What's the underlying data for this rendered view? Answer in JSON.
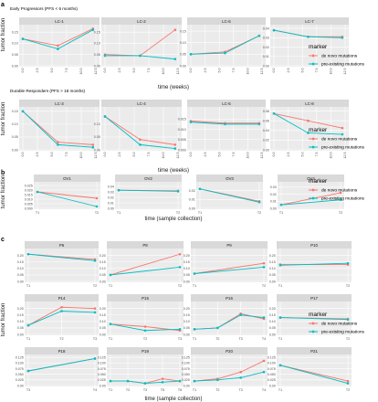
{
  "labels": {
    "a": "a",
    "b": "b",
    "c": "c"
  },
  "colors": {
    "de_novo": "#F8766D",
    "pre_existing": "#00BFC4",
    "panel_bg": "#EBEBEB",
    "strip_bg": "#D9D9D9",
    "grid": "#FFFFFF"
  },
  "legend": {
    "title": "marker",
    "items": [
      "de novo mutations",
      "pre-existing mutations"
    ]
  },
  "chart_data": [
    {
      "id": "early",
      "type": "line",
      "title": "Early Progressors (PFS < 6 months)",
      "xlabel": "time (weeks)",
      "ylabel": "tumor fraction",
      "x_ticks": [
        "0.0",
        "2.5",
        "5.0",
        "7.5",
        "10.0",
        "12.5"
      ],
      "panels": [
        {
          "name": "LC-1",
          "ylim": [
            0,
            0.175
          ],
          "y_ticks": [
            "0.00",
            "0.05",
            "0.10",
            "0.15"
          ],
          "series": [
            {
              "name": "de novo mutations",
              "x": [
                0,
                6,
                12
              ],
              "y": [
                0.12,
                0.09,
                0.165
              ]
            },
            {
              "name": "pre-existing mutations",
              "x": [
                0,
                6,
                12
              ],
              "y": [
                0.12,
                0.075,
                0.16
              ]
            }
          ]
        },
        {
          "name": "LC-2",
          "ylim": [
            0,
            0.175
          ],
          "y_ticks": [
            "0.00",
            "0.05",
            "0.10",
            "0.15"
          ],
          "series": [
            {
              "name": "de novo mutations",
              "x": [
                0,
                6,
                12
              ],
              "y": [
                0.05,
                0.045,
                0.16
              ]
            },
            {
              "name": "pre-existing mutations",
              "x": [
                0,
                6,
                12
              ],
              "y": [
                0.045,
                0.045,
                0.03
              ]
            }
          ]
        },
        {
          "name": "LC-6",
          "ylim": [
            0,
            0.17
          ],
          "y_ticks": [
            "0.00",
            "0.05",
            "0.10",
            "0.15"
          ],
          "series": [
            {
              "name": "de novo mutations",
              "x": [
                0,
                6,
                12
              ],
              "y": [
                0.05,
                0.06,
                0.13
              ]
            },
            {
              "name": "pre-existing mutations",
              "x": [
                0,
                6,
                12
              ],
              "y": [
                0.05,
                0.055,
                0.13
              ]
            }
          ]
        },
        {
          "name": "LC-7",
          "ylim": [
            0,
            0.042
          ],
          "y_ticks": [
            "0.00",
            "0.01",
            "0.02",
            "0.03",
            "0.04"
          ],
          "series": [
            {
              "name": "de novo mutations",
              "x": [
                0,
                6,
                12
              ],
              "y": [
                0.038,
                0.031,
                0.031
              ]
            },
            {
              "name": "pre-existing mutations",
              "x": [
                0,
                6,
                12
              ],
              "y": [
                0.038,
                0.031,
                0.03
              ]
            }
          ]
        }
      ]
    },
    {
      "id": "durable",
      "type": "line",
      "title": "Durable Responders (PFS > 18 months)",
      "xlabel": "time (weeks)",
      "ylabel": "tumor fraction",
      "x_ticks": [
        "0.0",
        "2.5",
        "5.0",
        "7.5",
        "10.0",
        "12.5"
      ],
      "panels": [
        {
          "name": "LC-3",
          "ylim": [
            0,
            0.16
          ],
          "y_ticks": [
            "0.00",
            "0.05",
            "0.10",
            "0.15"
          ],
          "series": [
            {
              "name": "de novo mutations",
              "x": [
                0,
                6,
                12
              ],
              "y": [
                0.15,
                0.03,
                0.02
              ]
            },
            {
              "name": "pre-existing mutations",
              "x": [
                0,
                6,
                12
              ],
              "y": [
                0.15,
                0.02,
                0.01
              ]
            }
          ]
        },
        {
          "name": "LC-4",
          "ylim": [
            0,
            0.16
          ],
          "y_ticks": [
            "0.00",
            "0.05",
            "0.10"
          ],
          "series": [
            {
              "name": "de novo mutations",
              "x": [
                0,
                6,
                12
              ],
              "y": [
                0.13,
                0.04,
                0.02
              ]
            },
            {
              "name": "pre-existing mutations",
              "x": [
                0,
                6,
                12
              ],
              "y": [
                0.13,
                0.02,
                0.005
              ]
            }
          ]
        },
        {
          "name": "LC-5",
          "ylim": [
            0,
            0.02
          ],
          "y_ticks": [
            "0.000",
            "0.005",
            "0.010",
            "0.015"
          ],
          "series": [
            {
              "name": "de novo mutations",
              "x": [
                0,
                6,
                12
              ],
              "y": [
                0.014,
                0.013,
                0.013
              ]
            },
            {
              "name": "pre-existing mutations",
              "x": [
                0,
                6,
                12
              ],
              "y": [
                0.0135,
                0.0125,
                0.0125
              ]
            }
          ]
        },
        {
          "name": "LC-8",
          "ylim": [
            0,
            0.085
          ],
          "y_ticks": [
            "0.00",
            "0.02",
            "0.04",
            "0.06",
            "0.08"
          ],
          "series": [
            {
              "name": "de novo mutations",
              "x": [
                0,
                6,
                12
              ],
              "y": [
                0.075,
                0.06,
                0.045
              ]
            },
            {
              "name": "pre-existing mutations",
              "x": [
                0,
                6,
                12
              ],
              "y": [
                0.075,
                0.035,
                0.032
              ]
            }
          ]
        }
      ]
    },
    {
      "id": "ovarian",
      "type": "line",
      "xlabel": "time (sample collection)",
      "ylabel": "tumor fraction",
      "panels": [
        {
          "name": "OV1",
          "ylim": [
            0,
            0.027
          ],
          "x_ticks": [
            "T1",
            "T2"
          ],
          "y_ticks": [
            "0.000",
            "0.005",
            "0.010",
            "0.015",
            "0.020",
            "0.025"
          ],
          "series": [
            {
              "name": "de novo mutations",
              "x": [
                0,
                1
              ],
              "y": [
                0.018,
                0.011
              ]
            },
            {
              "name": "pre-existing mutations",
              "x": [
                0,
                1
              ],
              "y": [
                0.018,
                0.002
              ]
            }
          ]
        },
        {
          "name": "OV2",
          "ylim": [
            0,
            0.045
          ],
          "x_ticks": [
            "T1",
            "T2"
          ],
          "y_ticks": [
            "0.00",
            "0.01",
            "0.02",
            "0.03",
            "0.04"
          ],
          "series": [
            {
              "name": "de novo mutations",
              "x": [
                0,
                1
              ],
              "y": [
                0.033,
                0.032
              ]
            },
            {
              "name": "pre-existing mutations",
              "x": [
                0,
                1
              ],
              "y": [
                0.033,
                0.031
              ]
            }
          ]
        },
        {
          "name": "OV3",
          "ylim": [
            0,
            0.028
          ],
          "x_ticks": [
            "T1",
            "T2"
          ],
          "y_ticks": [
            "0.00",
            "0.01",
            "0.02"
          ],
          "series": [
            {
              "name": "de novo mutations",
              "x": [
                0,
                1
              ],
              "y": [
                0.022,
                0.008
              ]
            },
            {
              "name": "pre-existing mutations",
              "x": [
                0,
                1
              ],
              "y": [
                0.022,
                0.007
              ]
            }
          ]
        },
        {
          "name": "OV4",
          "ylim": [
            0,
            0.035
          ],
          "x_ticks": [
            "T1",
            "T2"
          ],
          "y_ticks": [
            "0.00",
            "0.01",
            "0.02",
            "0.03"
          ],
          "series": [
            {
              "name": "de novo mutations",
              "x": [
                0,
                1
              ],
              "y": [
                0.005,
                0.022
              ]
            },
            {
              "name": "pre-existing mutations",
              "x": [
                0,
                1
              ],
              "y": [
                0.005,
                0.012
              ]
            }
          ]
        }
      ]
    },
    {
      "id": "pancreatic",
      "type": "line",
      "xlabel": "time (sample collection)",
      "ylabel": "tumor fraction",
      "ylim": [
        0,
        0.24
      ],
      "y_ticks": [
        "0.00",
        "0.05",
        "0.10",
        "0.15",
        "0.20"
      ],
      "panels": [
        {
          "name": "P6",
          "x_ticks": [
            "T1",
            "T2"
          ],
          "series": [
            {
              "name": "de novo mutations",
              "x": [
                0,
                1
              ],
              "y": [
                0.21,
                0.17
              ]
            },
            {
              "name": "pre-existing mutations",
              "x": [
                0,
                1
              ],
              "y": [
                0.21,
                0.16
              ]
            }
          ]
        },
        {
          "name": "P8",
          "x_ticks": [
            "T1",
            "T2"
          ],
          "series": [
            {
              "name": "de novo mutations",
              "x": [
                0,
                1
              ],
              "y": [
                0.05,
                0.21
              ]
            },
            {
              "name": "pre-existing mutations",
              "x": [
                0,
                1
              ],
              "y": [
                0.05,
                0.11
              ]
            }
          ]
        },
        {
          "name": "P9",
          "x_ticks": [
            "T1",
            "T2"
          ],
          "series": [
            {
              "name": "de novo mutations",
              "x": [
                0,
                1
              ],
              "y": [
                0.06,
                0.14
              ]
            },
            {
              "name": "pre-existing mutations",
              "x": [
                0,
                1
              ],
              "y": [
                0.06,
                0.11
              ]
            }
          ]
        },
        {
          "name": "P10",
          "x_ticks": [
            "T1",
            "T2"
          ],
          "series": [
            {
              "name": "de novo mutations",
              "x": [
                0,
                1
              ],
              "y": [
                0.13,
                0.13
              ]
            },
            {
              "name": "pre-existing mutations",
              "x": [
                0,
                1
              ],
              "y": [
                0.125,
                0.14
              ]
            }
          ]
        },
        {
          "name": "P14",
          "x_ticks": [
            "T1",
            "T2",
            "T3"
          ],
          "series": [
            {
              "name": "de novo mutations",
              "x": [
                0,
                1,
                2
              ],
              "y": [
                0.07,
                0.21,
                0.2
              ]
            },
            {
              "name": "pre-existing mutations",
              "x": [
                0,
                1,
                2
              ],
              "y": [
                0.07,
                0.18,
                0.17
              ]
            }
          ]
        },
        {
          "name": "P15",
          "x_ticks": [
            "T1",
            "T2",
            "T3"
          ],
          "series": [
            {
              "name": "de novo mutations",
              "x": [
                0,
                1,
                2
              ],
              "y": [
                0.08,
                0.06,
                0.03
              ]
            },
            {
              "name": "pre-existing mutations",
              "x": [
                0,
                1,
                2
              ],
              "y": [
                0.08,
                0.03,
                0.04
              ]
            }
          ]
        },
        {
          "name": "P16",
          "x_ticks": [
            "T1",
            "T2",
            "T3",
            "T4"
          ],
          "series": [
            {
              "name": "de novo mutations",
              "x": [
                0,
                1,
                2,
                3
              ],
              "y": [
                0.04,
                0.05,
                0.16,
                0.12
              ]
            },
            {
              "name": "pre-existing mutations",
              "x": [
                0,
                1,
                2,
                3
              ],
              "y": [
                0.04,
                0.05,
                0.15,
                0.13
              ]
            }
          ]
        },
        {
          "name": "P17",
          "x_ticks": [
            "T1",
            "T2"
          ],
          "series": [
            {
              "name": "de novo mutations",
              "x": [
                0,
                1
              ],
              "y": [
                0.13,
                0.12
              ]
            },
            {
              "name": "pre-existing mutations",
              "x": [
                0,
                1
              ],
              "y": [
                0.13,
                0.115
              ]
            }
          ]
        }
      ]
    },
    {
      "id": "pancreatic-lower",
      "type": "line",
      "xlabel": "time (sample collection)",
      "ylabel": "tumor fraction",
      "ylim": [
        0,
        0.13
      ],
      "y_ticks": [
        "0.00",
        "0.025",
        "0.050",
        "0.075",
        "0.100",
        "0.125"
      ],
      "panels": [
        {
          "name": "P18",
          "x_ticks": [
            "T3",
            "T4"
          ],
          "series": [
            {
              "name": "de novo mutations",
              "x": [
                0,
                1
              ],
              "y": [
                0.065,
                0.12
              ]
            },
            {
              "name": "pre-existing mutations",
              "x": [
                0,
                1
              ],
              "y": [
                0.065,
                0.12
              ]
            }
          ]
        },
        {
          "name": "P19",
          "x_ticks": [
            "T1",
            "T2",
            "T3",
            "T5",
            "T6"
          ],
          "series": [
            {
              "name": "de novo mutations",
              "x": [
                0,
                1,
                2,
                3,
                4
              ],
              "y": [
                0.02,
                0.02,
                0.01,
                0.03,
                0.02
              ]
            },
            {
              "name": "pre-existing mutations",
              "x": [
                0,
                1,
                2,
                3,
                4
              ],
              "y": [
                0.02,
                0.02,
                0.01,
                0.015,
                0.02
              ]
            }
          ]
        },
        {
          "name": "P20",
          "x_ticks": [
            "T1",
            "T2",
            "T3",
            "T4"
          ],
          "series": [
            {
              "name": "de novo mutations",
              "x": [
                0,
                1,
                2,
                3
              ],
              "y": [
                0.02,
                0.03,
                0.06,
                0.11
              ]
            },
            {
              "name": "pre-existing mutations",
              "x": [
                0,
                1,
                2,
                3
              ],
              "y": [
                0.02,
                0.025,
                0.035,
                0.06
              ]
            }
          ]
        },
        {
          "name": "P21",
          "x_ticks": [
            "T1",
            "T2"
          ],
          "series": [
            {
              "name": "de novo mutations",
              "x": [
                0,
                1
              ],
              "y": [
                0.09,
                0.02
              ]
            },
            {
              "name": "pre-existing mutations",
              "x": [
                0,
                1
              ],
              "y": [
                0.09,
                0.01
              ]
            }
          ]
        }
      ]
    }
  ]
}
